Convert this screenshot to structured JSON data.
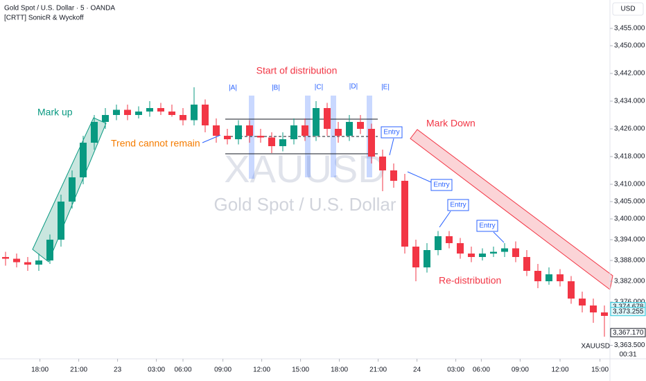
{
  "header": {
    "symbol_title": "Gold Spot / U.S. Dollar · 5 · OANDA",
    "indicator": "[CRTT] SonicR & Wyckoff",
    "currency": "USD"
  },
  "watermark": {
    "ticker": "XAUUSD",
    "name": "Gold Spot / U.S. Dollar"
  },
  "annotations": {
    "mark_up": "Mark up",
    "trend": "Trend cannot remain",
    "start": "Start of distribution",
    "a": "|A|",
    "b": "|B|",
    "c": "|C|",
    "d": "|D|",
    "e": "|E|",
    "mark_down": "Mark Down",
    "entry1": "Entry",
    "entry2": "Entry",
    "entry3": "Entry",
    "entry4": "Entry",
    "redistribution": "Re-distribution"
  },
  "footer": {
    "ticker": "XAUUSD",
    "countdown": "00:31"
  },
  "chart_data": {
    "type": "candlestick",
    "up_color": "#089981",
    "down_color": "#f23645",
    "open": [
      3389,
      3388.5,
      3387.5,
      3386.8,
      3388,
      3394,
      3405,
      3412,
      3422,
      3428,
      3430,
      3431.5,
      3430,
      3431,
      3432,
      3431,
      3430,
      3428.5,
      3433,
      3427,
      3424,
      3423,
      3427,
      3424,
      3423.5,
      3421,
      3423,
      3427,
      3424,
      3432,
      3426,
      3424,
      3428,
      3426,
      3418,
      3414,
      3411,
      3392,
      3386,
      3391,
      3395,
      3393,
      3390,
      3389,
      3390,
      3390.5,
      3391.5,
      3389,
      3385,
      3382,
      3384,
      3382,
      3377,
      3375,
      3373
    ],
    "high": [
      3390.5,
      3390,
      3389,
      3390,
      3395.5,
      3407,
      3414,
      3424,
      3430,
      3432,
      3433,
      3433,
      3432.5,
      3434,
      3433.5,
      3433,
      3432,
      3438,
      3434.5,
      3429,
      3426,
      3428.5,
      3428.5,
      3426,
      3425,
      3425,
      3429,
      3429,
      3434,
      3433.5,
      3428,
      3430,
      3430,
      3427.5,
      3420,
      3416,
      3413,
      3394,
      3393,
      3396.5,
      3396.5,
      3394.5,
      3392,
      3391.5,
      3392,
      3393,
      3393.5,
      3391,
      3387,
      3386,
      3385.5,
      3383.5,
      3379,
      3377,
      3375
    ],
    "low": [
      3386.5,
      3386,
      3385,
      3385,
      3387,
      3392,
      3403,
      3410,
      3420,
      3426,
      3428.5,
      3428.5,
      3429,
      3429.5,
      3430,
      3429.5,
      3427,
      3427,
      3425,
      3422,
      3421.5,
      3421.5,
      3422,
      3422,
      3419,
      3419.5,
      3421.5,
      3422.5,
      3422.5,
      3424,
      3422,
      3422.5,
      3424.5,
      3416,
      3408,
      3409,
      3390,
      3382,
      3384.5,
      3389.5,
      3391.5,
      3388.5,
      3387.5,
      3388,
      3389,
      3389,
      3387.5,
      3383.5,
      3380,
      3381,
      3380.5,
      3375.5,
      3373,
      3370,
      3366
    ],
    "close": [
      3388.5,
      3387.5,
      3386.8,
      3388,
      3394,
      3405,
      3412,
      3422,
      3428,
      3430,
      3431.5,
      3430,
      3431,
      3432,
      3431,
      3430,
      3428.5,
      3433,
      3427,
      3424,
      3423,
      3427,
      3424,
      3423.5,
      3421,
      3423,
      3427,
      3424,
      3432,
      3426,
      3424,
      3428,
      3426,
      3418,
      3414,
      3411,
      3392,
      3386,
      3391,
      3395,
      3393,
      3390,
      3389,
      3390,
      3390.5,
      3391.5,
      3389,
      3385,
      3382,
      3384,
      3382,
      3377,
      3375,
      3373,
      3372
    ],
    "ylim": [
      3359.6,
      3463.2
    ],
    "yticks": [
      {
        "value": 3455,
        "label": "3,455.000"
      },
      {
        "value": 3450,
        "label": "3,450.000"
      },
      {
        "value": 3442,
        "label": "3,442.000"
      },
      {
        "value": 3434,
        "label": "3,434.000"
      },
      {
        "value": 3426,
        "label": "3,426.000"
      },
      {
        "value": 3418,
        "label": "3,418.000"
      },
      {
        "value": 3410,
        "label": "3,410.000"
      },
      {
        "value": 3405,
        "label": "3,405.000"
      },
      {
        "value": 3400,
        "label": "3,400.000"
      },
      {
        "value": 3394,
        "label": "3,394.000"
      },
      {
        "value": 3388,
        "label": "3,388.000"
      },
      {
        "value": 3382,
        "label": "3,382.000"
      },
      {
        "value": 3376,
        "label": "3,376.000"
      },
      {
        "value": 3363.5,
        "label": "3,363.500"
      }
    ],
    "xticks": [
      {
        "value": 3.1,
        "label": "18:00"
      },
      {
        "value": 6.6,
        "label": "21:00"
      },
      {
        "value": 10.1,
        "label": "23"
      },
      {
        "value": 13.6,
        "label": "03:00"
      },
      {
        "value": 16,
        "label": "06:00"
      },
      {
        "value": 19.6,
        "label": "09:00"
      },
      {
        "value": 23.1,
        "label": "12:00"
      },
      {
        "value": 26.6,
        "label": "15:00"
      },
      {
        "value": 30.1,
        "label": "18:00"
      },
      {
        "value": 33.6,
        "label": "21:00"
      },
      {
        "value": 37.1,
        "label": "24"
      },
      {
        "value": 40.6,
        "label": "03:00"
      },
      {
        "value": 42.9,
        "label": "06:00"
      },
      {
        "value": 46.4,
        "label": "09:00"
      },
      {
        "value": 50,
        "label": "12:00"
      },
      {
        "value": 53.6,
        "label": "15:00"
      }
    ],
    "price_labels": [
      {
        "value": 3374.678,
        "label": "3,374.678",
        "color": "#26c6da"
      },
      {
        "value": 3373.255,
        "label": "3,373.255",
        "color": "#26c6da"
      },
      {
        "value": 3367.17,
        "label": "3,367.170",
        "color": "#131722"
      }
    ]
  }
}
